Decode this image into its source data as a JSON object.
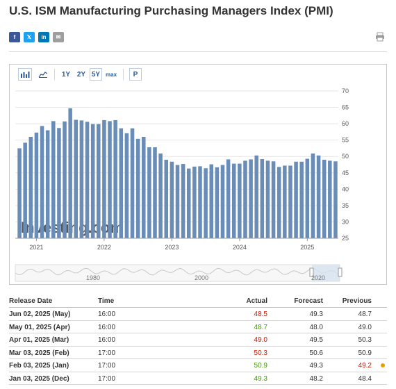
{
  "page": {
    "title": "U.S. ISM Manufacturing Purchasing Managers Index (PMI)"
  },
  "share": [
    {
      "icon": "facebook-icon",
      "glyph": "f",
      "color": "#3b5998"
    },
    {
      "icon": "x-twitter-icon",
      "glyph": "𝕏",
      "color": "#1da1f2"
    },
    {
      "icon": "linkedin-icon",
      "glyph": "in",
      "color": "#0077b5"
    },
    {
      "icon": "email-icon",
      "glyph": "✉",
      "color": "#9e9e9e"
    }
  ],
  "toolbar": {
    "bar_icon": "bar-chart-icon",
    "area_icon": "area-chart-icon",
    "ranges": [
      "1Y",
      "2Y",
      "5Y",
      "max"
    ],
    "selected_range": "5Y",
    "p_label": "P"
  },
  "chart_data": {
    "type": "bar",
    "series": [
      {
        "values": [
          52.5,
          54.2,
          56.0,
          57.3,
          59.3,
          58.0,
          60.8,
          58.7,
          60.7,
          64.7,
          61.2,
          61.0,
          60.6,
          59.9,
          59.9,
          61.1,
          60.8,
          61.1,
          58.6,
          57.1,
          58.6,
          55.4,
          56.0,
          52.8,
          52.8,
          50.9,
          49.0,
          48.4,
          47.4,
          47.7,
          46.3,
          46.9,
          47.0,
          46.4,
          47.6,
          46.7,
          47.4,
          49.1,
          47.8,
          47.8,
          48.7,
          49.1,
          50.3,
          49.2,
          48.7,
          48.5,
          46.8,
          47.2,
          47.2,
          48.4,
          48.4,
          49.3,
          50.9,
          50.3,
          49.0,
          48.7,
          48.5
        ],
        "dates_first": "2020-10",
        "dates_last": "2025-06"
      }
    ],
    "x_tick_labels": [
      "2021",
      "2022",
      "2023",
      "2024",
      "2025"
    ],
    "ylim": [
      25,
      70
    ],
    "y_ticks": [
      25,
      30,
      35,
      40,
      45,
      50,
      55,
      60,
      65,
      70
    ],
    "watermark": "Investing.com",
    "bar_color": "#6a8db8",
    "grid": true,
    "navigator_labels": [
      "1980",
      "2000",
      "2020"
    ]
  },
  "table": {
    "headers": {
      "date": "Release Date",
      "time": "Time",
      "actual": "Actual",
      "forecast": "Forecast",
      "previous": "Previous"
    },
    "rows": [
      {
        "date": "Jun 02, 2025 (May)",
        "time": "16:00",
        "actual": "48.5",
        "actual_color": "#d91400",
        "forecast": "49.3",
        "previous": "48.7",
        "previous_color": "#333333"
      },
      {
        "date": "May 01, 2025 (Apr)",
        "time": "16:00",
        "actual": "48.7",
        "actual_color": "#41a000",
        "forecast": "48.0",
        "previous": "49.0",
        "previous_color": "#333333"
      },
      {
        "date": "Apr 01, 2025 (Mar)",
        "time": "16:00",
        "actual": "49.0",
        "actual_color": "#d91400",
        "forecast": "49.5",
        "previous": "50.3",
        "previous_color": "#333333"
      },
      {
        "date": "Mar 03, 2025 (Feb)",
        "time": "17:00",
        "actual": "50.3",
        "actual_color": "#d91400",
        "forecast": "50.6",
        "previous": "50.9",
        "previous_color": "#333333"
      },
      {
        "date": "Feb 03, 2025 (Jan)",
        "time": "17:00",
        "actual": "50.9",
        "actual_color": "#41a000",
        "forecast": "49.3",
        "previous": "49.2",
        "previous_color": "#d91400",
        "revised": true
      },
      {
        "date": "Jan 03, 2025 (Dec)",
        "time": "17:00",
        "actual": "49.3",
        "actual_color": "#41a000",
        "forecast": "48.2",
        "previous": "48.4",
        "previous_color": "#333333"
      }
    ]
  }
}
